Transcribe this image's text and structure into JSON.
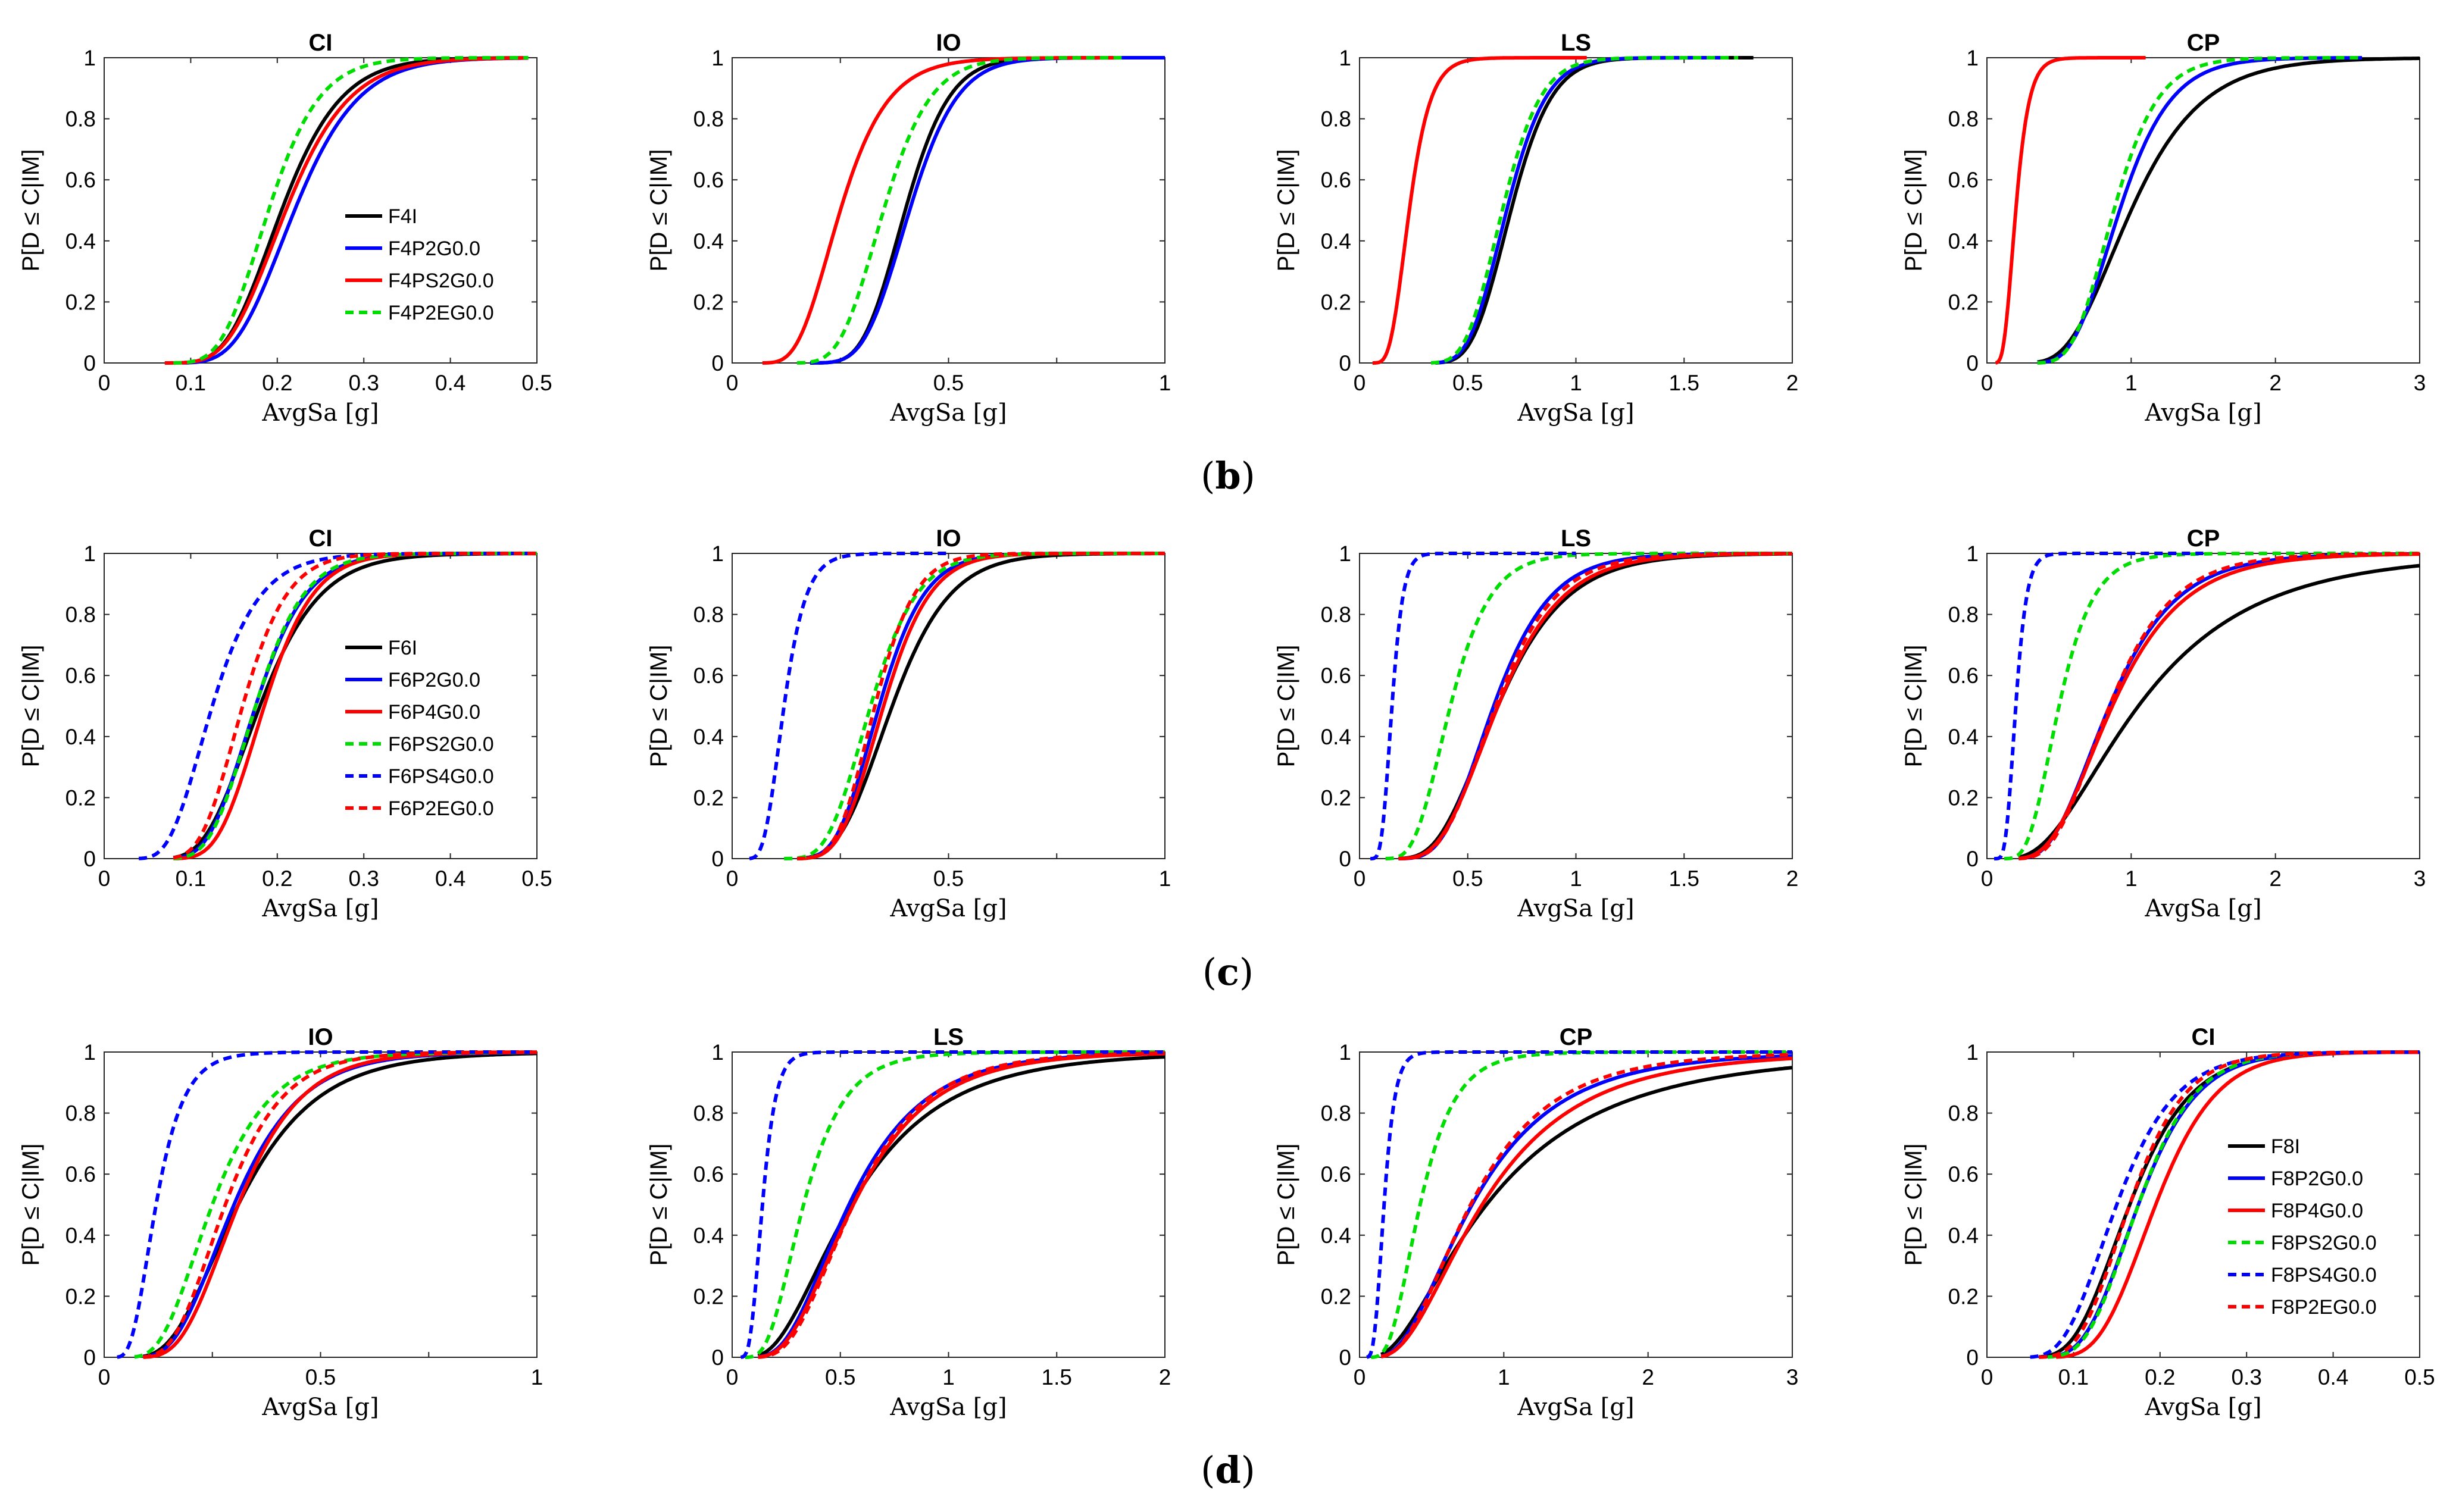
{
  "figure": {
    "row_labels": [
      {
        "open": "(",
        "letter": "b",
        "close": ")"
      },
      {
        "open": "(",
        "letter": "c",
        "close": ")"
      },
      {
        "open": "(",
        "letter": "d",
        "close": ")"
      }
    ]
  },
  "styles": {
    "black": {
      "color": "#000000",
      "dash": "solid"
    },
    "blue": {
      "color": "#0000ff",
      "dash": "solid"
    },
    "red": {
      "color": "#ff0000",
      "dash": "solid"
    },
    "green_dash": {
      "color": "#00dd00",
      "dash": "dashed"
    },
    "blue_dash": {
      "color": "#0000ff",
      "dash": "dashed"
    },
    "red_dash": {
      "color": "#ff0000",
      "dash": "dashed"
    }
  },
  "chart_data": [
    {
      "type": "line",
      "title": "CI",
      "xlabel": "AvgSa [g]",
      "ylabel": "P[D ≤ C|IM]",
      "xlim": [
        0,
        0.5
      ],
      "ylim": [
        0,
        1
      ],
      "xticks": [
        "0",
        "0.1",
        "0.2",
        "0.3",
        "0.4",
        "0.5"
      ],
      "yticks": [
        "0",
        "0.2",
        "0.4",
        "0.6",
        "0.8",
        "1"
      ],
      "legend": {
        "position": "inside-lower-right"
      },
      "series": [
        {
          "name": "F4I",
          "style": "black",
          "median": 0.205,
          "beta": 0.26,
          "x_range": [
            0.09,
            0.49
          ]
        },
        {
          "name": "F4P2G0.0",
          "style": "blue",
          "median": 0.22,
          "beta": 0.26,
          "x_range": [
            0.09,
            0.49
          ]
        },
        {
          "name": "F4PS2G0.0",
          "style": "red",
          "median": 0.21,
          "beta": 0.27,
          "x_range": [
            0.07,
            0.49
          ]
        },
        {
          "name": "F4P2EG0.0",
          "style": "green_dash",
          "median": 0.19,
          "beta": 0.24,
          "x_range": [
            0.08,
            0.49
          ]
        }
      ]
    },
    {
      "type": "line",
      "title": "IO",
      "xlabel": "AvgSa [g]",
      "ylabel": "P[D ≤ C|IM]",
      "xlim": [
        0,
        1
      ],
      "ylim": [
        0,
        1
      ],
      "xticks": [
        "0",
        "",
        "0.5",
        "",
        "1"
      ],
      "yticks": [
        "0",
        "0.2",
        "0.4",
        "0.6",
        "0.8",
        "1"
      ],
      "legend": null,
      "series": [
        {
          "name": "F4I",
          "style": "black",
          "median": 0.4,
          "beta": 0.2,
          "x_range": [
            0.2,
            1.0
          ]
        },
        {
          "name": "F4P2G0.0",
          "style": "blue",
          "median": 0.41,
          "beta": 0.21,
          "x_range": [
            0.18,
            1.0
          ]
        },
        {
          "name": "F4PS2G0.0",
          "style": "red",
          "median": 0.25,
          "beta": 0.34,
          "x_range": [
            0.07,
            0.9
          ]
        },
        {
          "name": "F4P2EG0.0",
          "style": "green_dash",
          "median": 0.35,
          "beta": 0.24,
          "x_range": [
            0.15,
            0.9
          ]
        }
      ]
    },
    {
      "type": "line",
      "title": "LS",
      "xlabel": "AvgSa [g]",
      "ylabel": "P[D ≤ C|IM]",
      "xlim": [
        0,
        2
      ],
      "ylim": [
        0,
        1
      ],
      "xticks": [
        "0",
        "0.5",
        "1",
        "1.5",
        "2"
      ],
      "yticks": [
        "0",
        "0.2",
        "0.4",
        "0.6",
        "0.8",
        "1"
      ],
      "legend": null,
      "series": [
        {
          "name": "F4I",
          "style": "black",
          "median": 0.7,
          "beta": 0.21,
          "x_range": [
            0.35,
            1.82
          ]
        },
        {
          "name": "F4P2G0.0",
          "style": "blue",
          "median": 0.68,
          "beta": 0.21,
          "x_range": [
            0.35,
            1.7
          ]
        },
        {
          "name": "F4PS2G0.0",
          "style": "red",
          "median": 0.23,
          "beta": 0.33,
          "x_range": [
            0.06,
            1.05
          ]
        },
        {
          "name": "F4P2EG0.0",
          "style": "green_dash",
          "median": 0.66,
          "beta": 0.21,
          "x_range": [
            0.33,
            1.75
          ]
        }
      ]
    },
    {
      "type": "line",
      "title": "CP",
      "xlabel": "AvgSa [g]",
      "ylabel": "P[D ≤ C|IM]",
      "xlim": [
        0,
        3
      ],
      "ylim": [
        0,
        1
      ],
      "xticks": [
        "0",
        "1",
        "2",
        "3"
      ],
      "yticks": [
        "0",
        "0.2",
        "0.4",
        "0.6",
        "0.8",
        "1"
      ],
      "legend": null,
      "series": [
        {
          "name": "F4I",
          "style": "black",
          "median": 1.0,
          "beta": 0.38,
          "x_range": [
            0.35,
            3.0
          ]
        },
        {
          "name": "F4P2G0.0",
          "style": "blue",
          "median": 0.92,
          "beta": 0.3,
          "x_range": [
            0.35,
            2.6
          ]
        },
        {
          "name": "F4PS2G0.0",
          "style": "red",
          "median": 0.2,
          "beta": 0.36,
          "x_range": [
            0.06,
            1.1
          ]
        },
        {
          "name": "F4P2EG0.0",
          "style": "green_dash",
          "median": 0.88,
          "beta": 0.27,
          "x_range": [
            0.35,
            2.6
          ]
        }
      ]
    },
    {
      "type": "line",
      "title": "CI",
      "xlabel": "AvgSa [g]",
      "ylabel": "P[D ≤ C|IM]",
      "xlim": [
        0,
        0.5
      ],
      "ylim": [
        0,
        1
      ],
      "xticks": [
        "0",
        "0.1",
        "0.2",
        "0.3",
        "0.4",
        "0.5"
      ],
      "yticks": [
        "0",
        "0.2",
        "0.4",
        "0.6",
        "0.8",
        "1"
      ],
      "legend": {
        "position": "inside-lower-right"
      },
      "series": [
        {
          "name": "F6I",
          "style": "black",
          "median": 0.18,
          "beta": 0.3,
          "x_range": [
            0.08,
            0.5
          ]
        },
        {
          "name": "F6P2G0.0",
          "style": "blue",
          "median": 0.175,
          "beta": 0.26,
          "x_range": [
            0.08,
            0.5
          ]
        },
        {
          "name": "F6P4G0.0",
          "style": "red",
          "median": 0.185,
          "beta": 0.24,
          "x_range": [
            0.08,
            0.5
          ]
        },
        {
          "name": "F6PS2G0.0",
          "style": "green_dash",
          "median": 0.175,
          "beta": 0.25,
          "x_range": [
            0.08,
            0.5
          ]
        },
        {
          "name": "F6PS4G0.0",
          "style": "blue_dash",
          "median": 0.125,
          "beta": 0.34,
          "x_range": [
            0.04,
            0.5
          ]
        },
        {
          "name": "F6P2EG0.0",
          "style": "red_dash",
          "median": 0.16,
          "beta": 0.25,
          "x_range": [
            0.08,
            0.5
          ]
        }
      ]
    },
    {
      "type": "line",
      "title": "IO",
      "xlabel": "AvgSa [g]",
      "ylabel": "P[D ≤ C|IM]",
      "xlim": [
        0,
        1
      ],
      "ylim": [
        0,
        1
      ],
      "xticks": [
        "0",
        "",
        "0.5",
        "",
        "1"
      ],
      "yticks": [
        "0",
        "0.2",
        "0.4",
        "0.6",
        "0.8",
        "1"
      ],
      "legend": null,
      "series": [
        {
          "name": "F6I",
          "style": "black",
          "median": 0.37,
          "beta": 0.28,
          "x_range": [
            0.17,
            1.0
          ]
        },
        {
          "name": "F6P2G0.0",
          "style": "blue",
          "median": 0.34,
          "beta": 0.24,
          "x_range": [
            0.15,
            1.0
          ]
        },
        {
          "name": "F6P4G0.0",
          "style": "red",
          "median": 0.35,
          "beta": 0.24,
          "x_range": [
            0.15,
            1.0
          ]
        },
        {
          "name": "F6PS2G0.0",
          "style": "green_dash",
          "median": 0.32,
          "beta": 0.26,
          "x_range": [
            0.12,
            1.0
          ]
        },
        {
          "name": "F6PS4G0.0",
          "style": "blue_dash",
          "median": 0.12,
          "beta": 0.33,
          "x_range": [
            0.04,
            0.5
          ]
        },
        {
          "name": "F6P2EG0.0",
          "style": "red_dash",
          "median": 0.33,
          "beta": 0.22,
          "x_range": [
            0.15,
            1.0
          ]
        }
      ]
    },
    {
      "type": "line",
      "title": "LS",
      "xlabel": "AvgSa [g]",
      "ylabel": "P[D ≤ C|IM]",
      "xlim": [
        0,
        2
      ],
      "ylim": [
        0,
        1
      ],
      "xticks": [
        "0",
        "0.5",
        "1",
        "1.5",
        "2"
      ],
      "yticks": [
        "0",
        "0.2",
        "0.4",
        "0.6",
        "0.8",
        "1"
      ],
      "legend": null,
      "series": [
        {
          "name": "F6I",
          "style": "black",
          "median": 0.64,
          "beta": 0.38,
          "x_range": [
            0.18,
            2.0
          ]
        },
        {
          "name": "F6P2G0.0",
          "style": "blue",
          "median": 0.62,
          "beta": 0.33,
          "x_range": [
            0.18,
            2.0
          ]
        },
        {
          "name": "F6P4G0.0",
          "style": "red",
          "median": 0.64,
          "beta": 0.36,
          "x_range": [
            0.18,
            2.0
          ]
        },
        {
          "name": "F6PS2G0.0",
          "style": "green_dash",
          "median": 0.42,
          "beta": 0.34,
          "x_range": [
            0.12,
            2.0
          ]
        },
        {
          "name": "F6PS4G0.0",
          "style": "blue_dash",
          "median": 0.15,
          "beta": 0.27,
          "x_range": [
            0.05,
            1.0
          ]
        },
        {
          "name": "F6P2EG0.0",
          "style": "red_dash",
          "median": 0.63,
          "beta": 0.34,
          "x_range": [
            0.18,
            2.0
          ]
        }
      ]
    },
    {
      "type": "line",
      "title": "CP",
      "xlabel": "AvgSa [g]",
      "ylabel": "P[D ≤ C|IM]",
      "xlim": [
        0,
        3
      ],
      "ylim": [
        0,
        1
      ],
      "xticks": [
        "0",
        "1",
        "2",
        "3"
      ],
      "yticks": [
        "0",
        "0.2",
        "0.4",
        "0.6",
        "0.8",
        "1"
      ],
      "legend": null,
      "series": [
        {
          "name": "F6I",
          "style": "black",
          "median": 1.05,
          "beta": 0.6,
          "x_range": [
            0.22,
            3.0
          ]
        },
        {
          "name": "F6P2G0.0",
          "style": "blue",
          "median": 0.85,
          "beta": 0.42,
          "x_range": [
            0.22,
            3.0
          ]
        },
        {
          "name": "F6P4G0.0",
          "style": "red",
          "median": 0.87,
          "beta": 0.44,
          "x_range": [
            0.22,
            3.0
          ]
        },
        {
          "name": "F6PS2G0.0",
          "style": "green_dash",
          "median": 0.5,
          "beta": 0.37,
          "x_range": [
            0.12,
            3.0
          ]
        },
        {
          "name": "F6PS4G0.0",
          "style": "blue_dash",
          "median": 0.2,
          "beta": 0.3,
          "x_range": [
            0.05,
            1.5
          ]
        },
        {
          "name": "F6P2EG0.0",
          "style": "red_dash",
          "median": 0.85,
          "beta": 0.4,
          "x_range": [
            0.22,
            3.0
          ]
        }
      ]
    },
    {
      "type": "line",
      "title": "IO",
      "xlabel": "AvgSa [g]",
      "ylabel": "P[D ≤ C|IM]",
      "xlim": [
        0,
        1
      ],
      "ylim": [
        0,
        1
      ],
      "xticks": [
        "0",
        "",
        "0.5",
        "",
        "1"
      ],
      "yticks": [
        "0",
        "0.2",
        "0.4",
        "0.6",
        "0.8",
        "1"
      ],
      "legend": null,
      "series": [
        {
          "name": "F8I",
          "style": "black",
          "median": 0.31,
          "beta": 0.45,
          "x_range": [
            0.09,
            1.0
          ]
        },
        {
          "name": "F8P2G0.0",
          "style": "blue",
          "median": 0.3,
          "beta": 0.4,
          "x_range": [
            0.09,
            1.0
          ]
        },
        {
          "name": "F8P4G0.0",
          "style": "red",
          "median": 0.31,
          "beta": 0.37,
          "x_range": [
            0.09,
            1.0
          ]
        },
        {
          "name": "F8PS2G0.0",
          "style": "green_dash",
          "median": 0.25,
          "beta": 0.42,
          "x_range": [
            0.07,
            1.0
          ]
        },
        {
          "name": "F8PS4G0.0",
          "style": "blue_dash",
          "median": 0.12,
          "beta": 0.42,
          "x_range": [
            0.03,
            1.0
          ]
        },
        {
          "name": "F8P2EG0.0",
          "style": "red_dash",
          "median": 0.28,
          "beta": 0.37,
          "x_range": [
            0.09,
            1.0
          ]
        }
      ]
    },
    {
      "type": "line",
      "title": "LS",
      "xlabel": "AvgSa [g]",
      "ylabel": "P[D ≤ C|IM]",
      "xlim": [
        0,
        2
      ],
      "ylim": [
        0,
        1
      ],
      "xticks": [
        "0",
        "0.5",
        "1",
        "1.5",
        "2"
      ],
      "yticks": [
        "0",
        "0.2",
        "0.4",
        "0.6",
        "0.8",
        "1"
      ],
      "legend": null,
      "series": [
        {
          "name": "F8I",
          "style": "black",
          "median": 0.55,
          "beta": 0.6,
          "x_range": [
            0.12,
            2.0
          ]
        },
        {
          "name": "F8P2G0.0",
          "style": "blue",
          "median": 0.54,
          "beta": 0.5,
          "x_range": [
            0.12,
            2.0
          ]
        },
        {
          "name": "F8P4G0.0",
          "style": "red",
          "median": 0.56,
          "beta": 0.5,
          "x_range": [
            0.12,
            2.0
          ]
        },
        {
          "name": "F8PS2G0.0",
          "style": "green_dash",
          "median": 0.33,
          "beta": 0.45,
          "x_range": [
            0.06,
            2.0
          ]
        },
        {
          "name": "F8PS4G0.0",
          "style": "blue_dash",
          "median": 0.14,
          "beta": 0.35,
          "x_range": [
            0.04,
            2.0
          ]
        },
        {
          "name": "F8P2EG0.0",
          "style": "red_dash",
          "median": 0.56,
          "beta": 0.47,
          "x_range": [
            0.12,
            2.0
          ]
        }
      ]
    },
    {
      "type": "line",
      "title": "CP",
      "xlabel": "AvgSa [g]",
      "ylabel": "P[D ≤ C|IM]",
      "xlim": [
        0,
        3
      ],
      "ylim": [
        0,
        1
      ],
      "xticks": [
        "0",
        "1",
        "2",
        "3"
      ],
      "yticks": [
        "0",
        "0.2",
        "0.4",
        "0.6",
        "0.8",
        "1"
      ],
      "legend": null,
      "series": [
        {
          "name": "F8I",
          "style": "black",
          "median": 0.88,
          "beta": 0.75,
          "x_range": [
            0.15,
            3.0
          ]
        },
        {
          "name": "F8P2G0.0",
          "style": "blue",
          "median": 0.78,
          "beta": 0.6,
          "x_range": [
            0.15,
            3.0
          ]
        },
        {
          "name": "F8P4G0.0",
          "style": "red",
          "median": 0.85,
          "beta": 0.62,
          "x_range": [
            0.15,
            3.0
          ]
        },
        {
          "name": "F8PS2G0.0",
          "style": "green_dash",
          "median": 0.42,
          "beta": 0.45,
          "x_range": [
            0.08,
            3.0
          ]
        },
        {
          "name": "F8PS4G0.0",
          "style": "blue_dash",
          "median": 0.17,
          "beta": 0.35,
          "x_range": [
            0.05,
            3.0
          ]
        },
        {
          "name": "F8P2EG0.0",
          "style": "red_dash",
          "median": 0.77,
          "beta": 0.57,
          "x_range": [
            0.15,
            3.0
          ]
        }
      ]
    },
    {
      "type": "line",
      "title": "CI",
      "xlabel": "AvgSa [g]",
      "ylabel": "P[D ≤ C|IM]",
      "xlim": [
        0,
        0.5
      ],
      "ylim": [
        0,
        1
      ],
      "xticks": [
        "0",
        "0.1",
        "0.2",
        "0.3",
        "0.4",
        "0.5"
      ],
      "yticks": [
        "0",
        "0.2",
        "0.4",
        "0.6",
        "0.8",
        "1"
      ],
      "legend": {
        "position": "inside-lower-right"
      },
      "series": [
        {
          "name": "F8I",
          "style": "black",
          "median": 0.165,
          "beta": 0.33,
          "x_range": [
            0.06,
            0.5
          ]
        },
        {
          "name": "F8P2G0.0",
          "style": "blue",
          "median": 0.175,
          "beta": 0.3,
          "x_range": [
            0.07,
            0.5
          ]
        },
        {
          "name": "F8P4G0.0",
          "style": "red",
          "median": 0.195,
          "beta": 0.28,
          "x_range": [
            0.08,
            0.5
          ]
        },
        {
          "name": "F8PS2G0.0",
          "style": "green_dash",
          "median": 0.175,
          "beta": 0.29,
          "x_range": [
            0.07,
            0.5
          ]
        },
        {
          "name": "F8PS4G0.0",
          "style": "blue_dash",
          "median": 0.15,
          "beta": 0.35,
          "x_range": [
            0.05,
            0.5
          ]
        },
        {
          "name": "F8P2EG0.0",
          "style": "red_dash",
          "median": 0.165,
          "beta": 0.3,
          "x_range": [
            0.06,
            0.5
          ]
        }
      ]
    }
  ]
}
